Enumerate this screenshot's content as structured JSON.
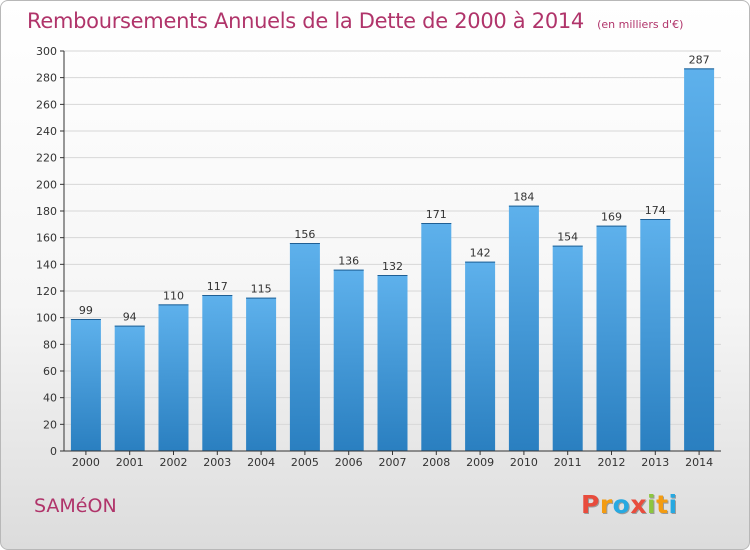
{
  "chart_data": {
    "type": "bar",
    "title": "Remboursements Annuels de la Dette de 2000 à 2014",
    "subtitle": "(en milliers d'€)",
    "xlabel": "",
    "ylabel": "",
    "categories": [
      "2000",
      "2001",
      "2002",
      "2003",
      "2004",
      "2005",
      "2006",
      "2007",
      "2008",
      "2009",
      "2010",
      "2011",
      "2012",
      "2013",
      "2014"
    ],
    "values": [
      99,
      94,
      110,
      117,
      115,
      156,
      136,
      132,
      171,
      142,
      184,
      154,
      169,
      174,
      287
    ],
    "ylim": [
      0,
      300
    ],
    "yticks": [
      0,
      20,
      40,
      60,
      80,
      100,
      120,
      140,
      160,
      180,
      200,
      220,
      240,
      260,
      280,
      300
    ],
    "grid": true
  },
  "footer": {
    "commune": "SAMéON",
    "logo": "Proxiti"
  },
  "colors": {
    "title": "#b0346a",
    "bar_light": "#5eb1ec",
    "bar_dark": "#2a7fc0",
    "grid": "#d7d7d7",
    "axis": "#333333",
    "logo": [
      "#e84c3d",
      "#f39c12",
      "#27a9e1",
      "#e84c3d",
      "#8cc63f",
      "#f39c12",
      "#27a9e1"
    ]
  }
}
